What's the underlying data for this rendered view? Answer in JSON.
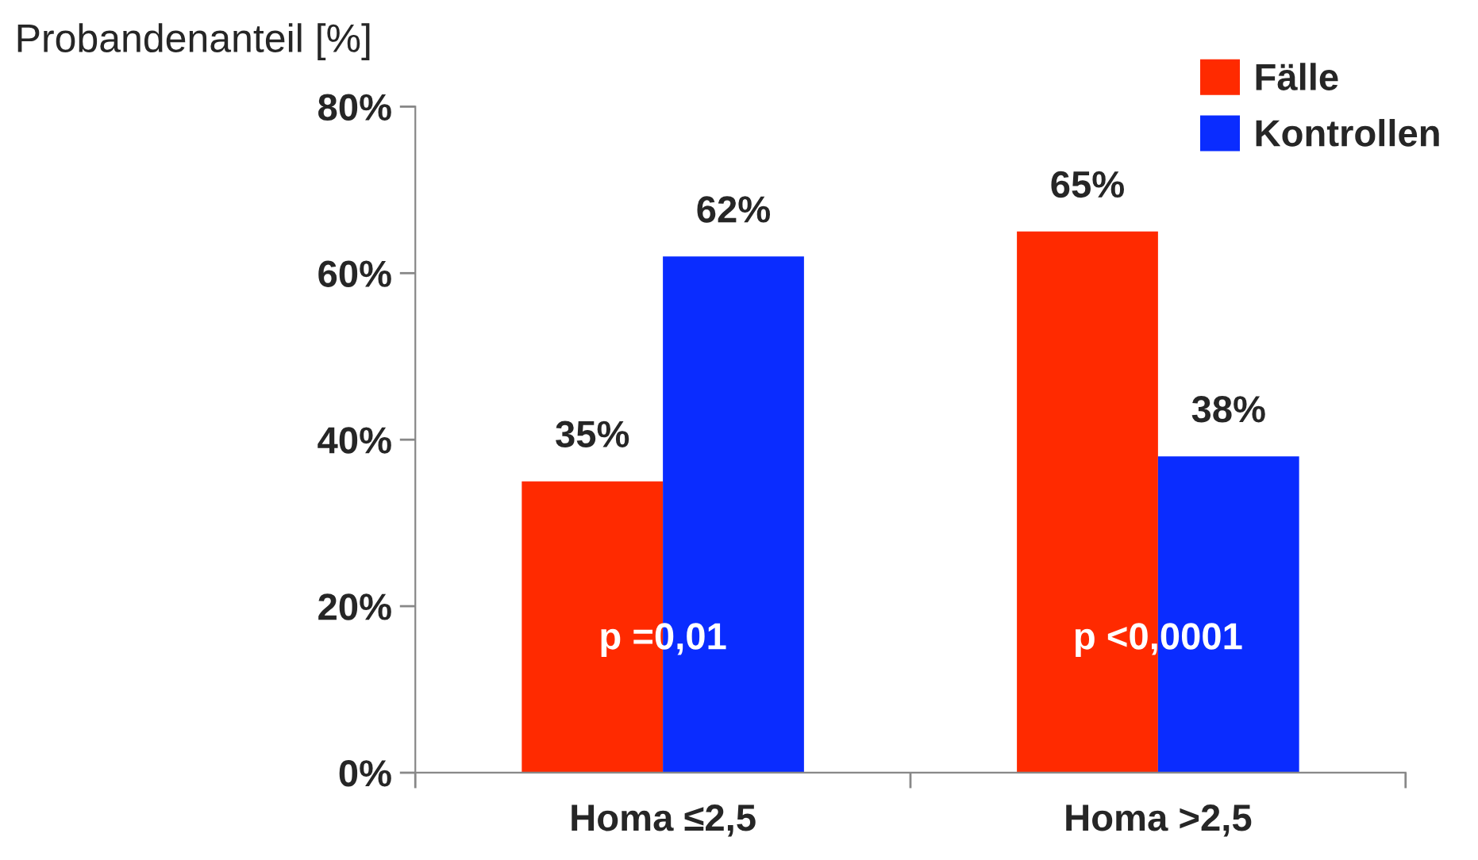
{
  "chart_data": {
    "type": "bar",
    "ylabel": "Probandenanteil [%]",
    "categories": [
      "Homa ≤2,5",
      "Homa >2,5"
    ],
    "series": [
      {
        "name": "Fälle",
        "color": "#ff2a00",
        "values": [
          35,
          65
        ],
        "value_labels": [
          "35%",
          "65%"
        ]
      },
      {
        "name": "Kontrollen",
        "color": "#0a2cff",
        "values": [
          62,
          38
        ],
        "value_labels": [
          "62%",
          "38%"
        ]
      }
    ],
    "ylim": [
      0,
      80
    ],
    "yticks": [
      {
        "value": 0,
        "label": "0%"
      },
      {
        "value": 20,
        "label": "20%"
      },
      {
        "value": 40,
        "label": "40%"
      },
      {
        "value": 60,
        "label": "60%"
      },
      {
        "value": 80,
        "label": "80%"
      }
    ],
    "annotations": [
      {
        "text": "p =0,01",
        "x": "Homa ≤2,5",
        "y": 16
      },
      {
        "text": "p <0,0001",
        "x": "Homa >2,5",
        "y": 16
      }
    ],
    "legend": "top right",
    "grid": false
  }
}
